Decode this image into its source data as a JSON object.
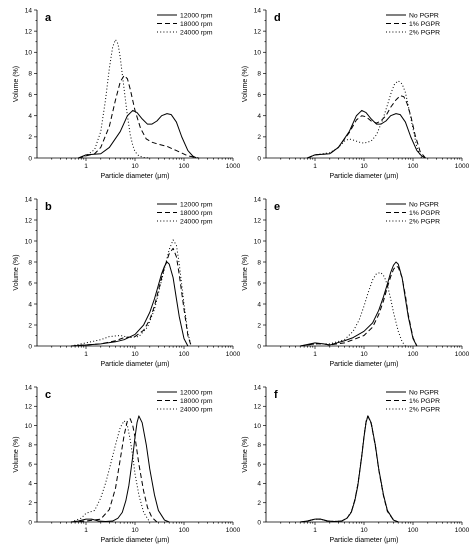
{
  "chart_data": [
    {
      "type": "line",
      "panel_label": "a",
      "xlabel": "Particle diameter (μm)",
      "ylabel": "Volume (%)",
      "xscale": "log",
      "xlim": [
        0.1,
        1000
      ],
      "ylim": [
        0,
        14
      ],
      "xticks": [
        "1",
        "10",
        "100",
        "1000"
      ],
      "yticks": [
        "0",
        "2",
        "4",
        "6",
        "8",
        "10",
        "12",
        "14"
      ],
      "legend_position": "top-right",
      "series": [
        {
          "name": "12000 rpm",
          "style": "solid",
          "x": [
            0.7,
            1,
            2,
            3,
            5,
            7,
            9,
            11,
            14,
            18,
            22,
            28,
            35,
            45,
            55,
            70,
            90,
            120,
            150,
            180
          ],
          "y": [
            0,
            0.3,
            0.4,
            1,
            2.5,
            4.0,
            4.5,
            4.3,
            3.7,
            3.2,
            3.2,
            3.5,
            4.0,
            4.2,
            4.1,
            3.4,
            2.0,
            0.7,
            0.2,
            0
          ]
        },
        {
          "name": "18000 rpm",
          "style": "dashed",
          "x": [
            0.7,
            1,
            1.5,
            2,
            3,
            4,
            5,
            6,
            7,
            8,
            10,
            13,
            17,
            22,
            30,
            45,
            70,
            120,
            200
          ],
          "y": [
            0,
            0.2,
            0.4,
            1,
            3,
            5.5,
            7.2,
            7.8,
            7.5,
            6.5,
            4.5,
            2.8,
            1.8,
            1.5,
            1.3,
            1.1,
            0.7,
            0.2,
            0
          ]
        },
        {
          "name": "24000 rpm",
          "style": "dotted",
          "x": [
            0.7,
            1,
            1.5,
            2,
            2.5,
            3,
            3.5,
            4,
            4.5,
            5,
            6,
            7,
            8,
            9,
            10,
            12,
            15,
            20
          ],
          "y": [
            0,
            0.2,
            0.8,
            2.5,
            5.5,
            8.5,
            10.5,
            11.2,
            10.8,
            9.5,
            6.5,
            4.0,
            2.2,
            1.2,
            0.6,
            0.2,
            0.05,
            0
          ]
        }
      ]
    },
    {
      "type": "line",
      "panel_label": "b",
      "xlabel": "Particle diameter (μm)",
      "ylabel": "Volume (%)",
      "xscale": "log",
      "xlim": [
        0.1,
        1000
      ],
      "ylim": [
        0,
        14
      ],
      "xticks": [
        "1",
        "10",
        "100",
        "1000"
      ],
      "yticks": [
        "0",
        "2",
        "4",
        "6",
        "8",
        "10",
        "12",
        "14"
      ],
      "legend_position": "top-right",
      "series": [
        {
          "name": "12000 rpm",
          "style": "solid",
          "x": [
            0.5,
            1,
            2,
            4,
            6,
            10,
            15,
            20,
            25,
            30,
            35,
            40,
            45,
            50,
            60,
            70,
            80,
            100,
            120
          ],
          "y": [
            0,
            0.1,
            0.2,
            0.4,
            0.6,
            1.1,
            2.0,
            3.2,
            4.5,
            5.8,
            6.9,
            7.6,
            8.0,
            7.8,
            6.5,
            4.5,
            2.8,
            0.7,
            0
          ]
        },
        {
          "name": "18000 rpm",
          "style": "dashed",
          "x": [
            0.5,
            1,
            2,
            4,
            6,
            10,
            15,
            20,
            25,
            30,
            35,
            40,
            50,
            60,
            70,
            80,
            100,
            120,
            140
          ],
          "y": [
            0,
            0.1,
            0.2,
            0.5,
            0.8,
            0.9,
            1.5,
            2.5,
            3.8,
            5.3,
            6.5,
            7.5,
            8.8,
            9.3,
            8.5,
            6.8,
            3.5,
            1.0,
            0
          ]
        },
        {
          "name": "24000 rpm",
          "style": "dotted",
          "x": [
            0.5,
            1,
            2,
            3,
            5,
            8,
            12,
            18,
            25,
            30,
            35,
            40,
            50,
            60,
            70,
            80,
            100,
            120,
            140
          ],
          "y": [
            0,
            0.3,
            0.6,
            0.9,
            1.0,
            0.8,
            0.9,
            1.8,
            3.5,
            5.0,
            6.3,
            7.4,
            9.2,
            10.1,
            9.6,
            7.8,
            4.0,
            1.2,
            0
          ]
        }
      ]
    },
    {
      "type": "line",
      "panel_label": "c",
      "xlabel": "Particle diameter (μm)",
      "ylabel": "Volume (%)",
      "xscale": "log",
      "xlim": [
        0.1,
        1000
      ],
      "ylim": [
        0,
        14
      ],
      "xticks": [
        "1",
        "10",
        "100",
        "1000"
      ],
      "yticks": [
        "0",
        "2",
        "4",
        "6",
        "8",
        "10",
        "12",
        "14"
      ],
      "legend_position": "top-right",
      "series": [
        {
          "name": "12000 rpm",
          "style": "solid",
          "x": [
            0.5,
            0.7,
            1,
            1.3,
            1.8,
            2.5,
            3.5,
            4.5,
            5.5,
            6.5,
            7.5,
            9,
            10,
            11,
            12,
            14,
            17,
            20,
            25,
            30,
            40,
            50
          ],
          "y": [
            0,
            0.1,
            0.3,
            0.3,
            0.1,
            0.05,
            0.1,
            0.4,
            1.0,
            2.2,
            3.8,
            6.8,
            8.8,
            10.3,
            11.0,
            10.3,
            8.0,
            5.5,
            2.8,
            1.2,
            0.2,
            0
          ]
        },
        {
          "name": "18000 rpm",
          "style": "dashed",
          "x": [
            0.5,
            1,
            2,
            3,
            4,
            5,
            6,
            7,
            8,
            9,
            10,
            12,
            15,
            18,
            22,
            28
          ],
          "y": [
            0,
            0.1,
            0.3,
            1.3,
            3.5,
            6.5,
            9.0,
            10.5,
            10.7,
            10.0,
            8.8,
            6.0,
            3.2,
            1.5,
            0.5,
            0
          ]
        },
        {
          "name": "24000 rpm",
          "style": "dotted",
          "x": [
            0.5,
            0.8,
            1,
            1.5,
            2,
            2.5,
            3,
            4,
            5,
            6,
            7,
            8,
            9,
            10,
            12,
            15,
            20
          ],
          "y": [
            0,
            0.4,
            0.9,
            1.2,
            2.5,
            4.0,
            5.5,
            8.0,
            9.8,
            10.5,
            10.0,
            8.5,
            6.8,
            5.0,
            2.8,
            1.0,
            0
          ]
        }
      ]
    },
    {
      "type": "line",
      "panel_label": "d",
      "xlabel": "Particle diameter (μm)",
      "ylabel": "Volume (%)",
      "xscale": "log",
      "xlim": [
        0.1,
        1000
      ],
      "ylim": [
        0,
        14
      ],
      "xticks": [
        "1",
        "10",
        "100",
        "1000"
      ],
      "yticks": [
        "0",
        "2",
        "4",
        "6",
        "8",
        "10",
        "12",
        "14"
      ],
      "legend_position": "top-right",
      "series": [
        {
          "name": "No PGPR",
          "style": "solid",
          "x": [
            0.7,
            1,
            2,
            3,
            5,
            7,
            9,
            11,
            14,
            18,
            22,
            28,
            35,
            45,
            55,
            70,
            90,
            120,
            150,
            180
          ],
          "y": [
            0,
            0.3,
            0.4,
            1,
            2.5,
            4.0,
            4.5,
            4.3,
            3.7,
            3.2,
            3.2,
            3.5,
            4.0,
            4.2,
            4.1,
            3.4,
            2.0,
            0.7,
            0.2,
            0
          ]
        },
        {
          "name": "1% PGPR",
          "style": "dashed",
          "x": [
            0.7,
            1,
            2,
            3,
            5,
            7,
            9,
            11,
            14,
            18,
            22,
            28,
            35,
            45,
            55,
            65,
            75,
            90,
            110,
            140,
            180
          ],
          "y": [
            0,
            0.3,
            0.4,
            1,
            2.4,
            3.6,
            4.0,
            3.9,
            3.5,
            3.3,
            3.5,
            4.0,
            4.8,
            5.5,
            5.9,
            5.8,
            5.2,
            4.0,
            2.2,
            0.6,
            0
          ]
        },
        {
          "name": "2% PGPR",
          "style": "dotted",
          "x": [
            0.7,
            1,
            2,
            3,
            4,
            5,
            6,
            8,
            10,
            14,
            18,
            24,
            30,
            36,
            42,
            50,
            60,
            70,
            90,
            120,
            150
          ],
          "y": [
            0,
            0.3,
            0.5,
            1.0,
            1.6,
            1.8,
            1.7,
            1.5,
            1.4,
            1.6,
            2.2,
            3.6,
            5.0,
            6.2,
            7.0,
            7.3,
            7.0,
            6.2,
            3.8,
            1.0,
            0
          ]
        }
      ]
    },
    {
      "type": "line",
      "panel_label": "e",
      "xlabel": "Particle diameter (μm)",
      "ylabel": "Volume (%)",
      "xscale": "log",
      "xlim": [
        0.1,
        1000
      ],
      "ylim": [
        0,
        14
      ],
      "xticks": [
        "1",
        "10",
        "100",
        "1000"
      ],
      "yticks": [
        "0",
        "2",
        "4",
        "6",
        "8",
        "10",
        "12",
        "14"
      ],
      "legend_position": "top-right",
      "series": [
        {
          "name": "No PGPR",
          "style": "solid",
          "x": [
            0.5,
            1,
            1.5,
            2,
            4,
            6,
            10,
            15,
            20,
            25,
            30,
            35,
            40,
            45,
            50,
            60,
            70,
            80,
            100,
            120
          ],
          "y": [
            0,
            0.3,
            0.2,
            0.1,
            0.5,
            0.8,
            1.4,
            2.2,
            3.4,
            4.7,
            5.9,
            7.0,
            7.7,
            8.0,
            7.8,
            6.5,
            4.5,
            2.8,
            0.7,
            0
          ]
        },
        {
          "name": "1% PGPR",
          "style": "dashed",
          "x": [
            0.5,
            1,
            1.5,
            2,
            4,
            6,
            10,
            15,
            20,
            25,
            30,
            35,
            40,
            45,
            50,
            60,
            70,
            80,
            100,
            120
          ],
          "y": [
            0,
            0.2,
            0.2,
            0.1,
            0.3,
            0.6,
            1.0,
            1.8,
            3.0,
            4.3,
            5.6,
            6.6,
            7.3,
            7.6,
            7.5,
            6.5,
            4.8,
            3.0,
            0.8,
            0
          ]
        },
        {
          "name": "2% PGPR",
          "style": "dotted",
          "x": [
            0.5,
            1,
            2,
            4,
            6,
            8,
            10,
            12,
            15,
            18,
            22,
            26,
            30,
            35,
            40,
            50,
            60,
            70
          ],
          "y": [
            0,
            0.2,
            0.2,
            0.6,
            1.4,
            2.5,
            3.8,
            5.0,
            6.3,
            6.9,
            7.0,
            6.6,
            5.8,
            4.5,
            3.2,
            1.4,
            0.4,
            0
          ]
        }
      ]
    },
    {
      "type": "line",
      "panel_label": "f",
      "xlabel": "Particle diameter (μm)",
      "ylabel": "Volume (%)",
      "xscale": "log",
      "xlim": [
        0.1,
        1000
      ],
      "ylim": [
        0,
        14
      ],
      "xticks": [
        "1",
        "10",
        "100",
        "1000"
      ],
      "yticks": [
        "0",
        "2",
        "4",
        "6",
        "8",
        "10",
        "12",
        "14"
      ],
      "legend_position": "top-right",
      "series": [
        {
          "name": "No PGPR",
          "style": "solid",
          "x": [
            0.5,
            0.7,
            1,
            1.3,
            1.8,
            2.5,
            3.5,
            4.5,
            5.5,
            6.5,
            7.5,
            9,
            10,
            11,
            12,
            14,
            17,
            20,
            25,
            30,
            40,
            50
          ],
          "y": [
            0,
            0.1,
            0.3,
            0.3,
            0.1,
            0.05,
            0.1,
            0.4,
            1.0,
            2.2,
            3.8,
            6.8,
            8.8,
            10.3,
            11.0,
            10.3,
            8.0,
            5.5,
            2.8,
            1.2,
            0.2,
            0
          ]
        },
        {
          "name": "1% PGPR",
          "style": "dashed",
          "x": [
            0.5,
            0.7,
            1,
            1.3,
            1.8,
            2.5,
            3.5,
            4.5,
            5.5,
            6.5,
            7.5,
            9,
            10,
            11,
            12,
            14,
            17,
            20,
            25,
            30,
            40,
            50
          ],
          "y": [
            0,
            0.1,
            0.3,
            0.3,
            0.1,
            0.05,
            0.1,
            0.4,
            1.0,
            2.3,
            3.9,
            6.9,
            8.9,
            10.4,
            11.0,
            10.2,
            7.9,
            5.4,
            2.7,
            1.1,
            0.2,
            0
          ]
        },
        {
          "name": "2% PGPR",
          "style": "dotted",
          "x": [
            0.5,
            0.7,
            1,
            1.3,
            1.8,
            2.5,
            3.5,
            4.5,
            5.5,
            6.5,
            7.5,
            9,
            10,
            11,
            12,
            14,
            17,
            20,
            25,
            30,
            40,
            50
          ],
          "y": [
            0,
            0.1,
            0.3,
            0.3,
            0.1,
            0.05,
            0.1,
            0.4,
            1.1,
            2.3,
            3.9,
            6.9,
            8.9,
            10.4,
            11.0,
            10.3,
            8.0,
            5.5,
            2.8,
            1.2,
            0.2,
            0
          ]
        }
      ]
    }
  ]
}
